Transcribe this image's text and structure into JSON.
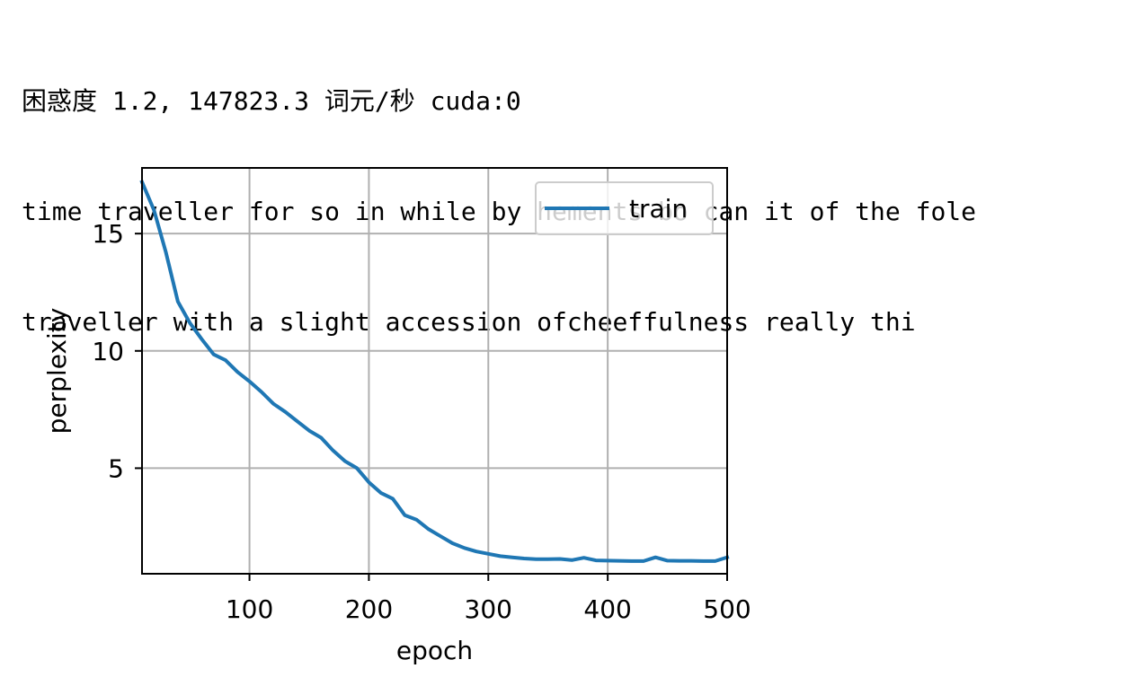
{
  "console_output": {
    "status_line": "困惑度 1.2, 147823.3 词元/秒 cuda:0",
    "sample_1": "time traveller for so in while by hements bo can it of the fole",
    "sample_2": "traveller with a slight accession ofcheeffulness really thi"
  },
  "chart_data": {
    "type": "line",
    "title": "",
    "xlabel": "epoch",
    "ylabel": "perplexity",
    "xlim": [
      10,
      500
    ],
    "ylim": [
      0.5,
      17.8
    ],
    "xticks": [
      100,
      200,
      300,
      400,
      500
    ],
    "yticks": [
      5,
      10,
      15
    ],
    "grid": true,
    "legend_position": "upper-right",
    "series": [
      {
        "name": "train",
        "color": "#1f77b4",
        "x": [
          10,
          20,
          30,
          40,
          50,
          60,
          70,
          80,
          90,
          100,
          110,
          120,
          130,
          140,
          150,
          160,
          170,
          180,
          190,
          200,
          210,
          220,
          230,
          240,
          250,
          260,
          270,
          280,
          290,
          300,
          310,
          320,
          330,
          340,
          350,
          360,
          370,
          380,
          390,
          400,
          410,
          420,
          430,
          440,
          450,
          460,
          470,
          480,
          490,
          500
        ],
        "y": [
          17.2,
          16.0,
          14.2,
          12.1,
          11.2,
          10.5,
          9.85,
          9.6,
          9.1,
          8.7,
          8.25,
          7.75,
          7.4,
          7.0,
          6.6,
          6.3,
          5.75,
          5.3,
          5.0,
          4.4,
          3.95,
          3.7,
          3.0,
          2.8,
          2.4,
          2.1,
          1.8,
          1.6,
          1.45,
          1.35,
          1.25,
          1.2,
          1.15,
          1.12,
          1.12,
          1.13,
          1.08,
          1.18,
          1.07,
          1.06,
          1.05,
          1.04,
          1.04,
          1.2,
          1.06,
          1.05,
          1.05,
          1.04,
          1.04,
          1.2
        ]
      }
    ]
  }
}
